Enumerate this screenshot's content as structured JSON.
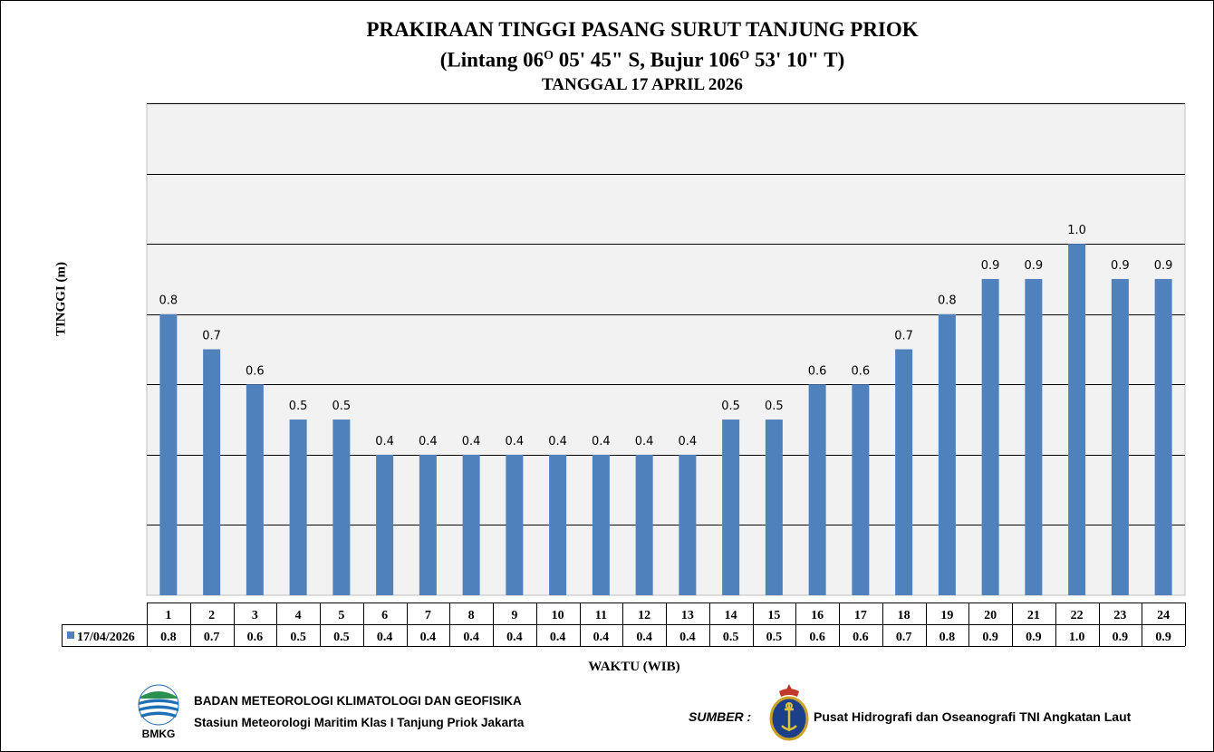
{
  "title": {
    "line1": "PRAKIRAAN TINGGI PASANG SURUT TANJUNG PRIOK",
    "line2_a": "(Lintang 06",
    "line2_sup1": "O",
    "line2_b": " 05' 45\" S, Bujur 106",
    "line2_sup2": "O",
    "line2_c": " 53' 10\" T)",
    "line3": "TANGGAL 17 APRIL 2026"
  },
  "chart_data": {
    "type": "bar",
    "title": "PRAKIRAAN TINGGI PASANG SURUT TANJUNG PRIOK",
    "xlabel": "WAKTU (WIB)",
    "ylabel": "TINGGI (m)",
    "ylim": [
      0,
      1.4
    ],
    "grid": true,
    "categories": [
      "1",
      "2",
      "3",
      "4",
      "5",
      "6",
      "7",
      "8",
      "9",
      "10",
      "11",
      "12",
      "13",
      "14",
      "15",
      "16",
      "17",
      "18",
      "19",
      "20",
      "21",
      "22",
      "23",
      "24"
    ],
    "series": [
      {
        "name": "17/04/2026",
        "color": "#4F81BD",
        "values": [
          0.8,
          0.7,
          0.6,
          0.5,
          0.5,
          0.4,
          0.4,
          0.4,
          0.4,
          0.4,
          0.4,
          0.4,
          0.4,
          0.5,
          0.5,
          0.6,
          0.6,
          0.7,
          0.8,
          0.9,
          0.9,
          1.0,
          0.9,
          0.9
        ],
        "labels": [
          "0.8",
          "0.7",
          "0.6",
          "0.5",
          "0.5",
          "0.4",
          "0.4",
          "0.4",
          "0.4",
          "0.4",
          "0.4",
          "0.4",
          "0.4",
          "0.5",
          "0.5",
          "0.6",
          "0.6",
          "0.7",
          "0.8",
          "0.9",
          "0.9",
          "1.0",
          "0.9",
          "0.9"
        ]
      }
    ],
    "data_table": true,
    "plot_background": "#F2F2F2"
  },
  "footer": {
    "org_name": "BADAN METEOROLOGI KLIMATOLOGI DAN GEOFISIKA",
    "station": "Stasiun Meteorologi Maritim Klas I Tanjung Priok Jakarta",
    "logo_text": "BMKG",
    "sumber_label": "SUMBER :",
    "source_name": "Pusat Hidrografi dan Oseanografi  TNI Angkatan Laut"
  }
}
